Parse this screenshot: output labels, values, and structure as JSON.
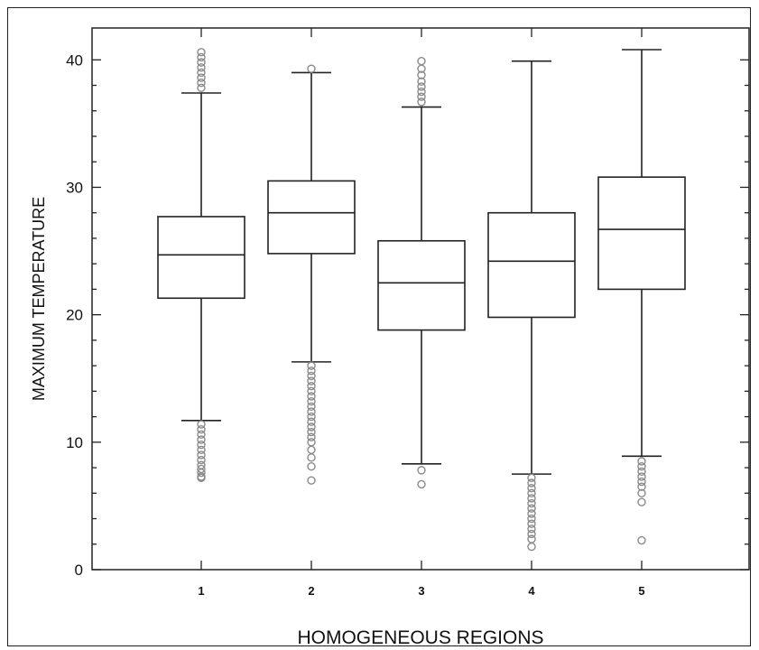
{
  "chart_data": {
    "type": "boxplot",
    "title": "",
    "xlabel": "HOMOGENEOUS REGIONS",
    "ylabel": "MAXIMUM TEMPERATURE",
    "ylim": [
      0,
      42.5
    ],
    "yticks": [
      0,
      10,
      20,
      30,
      40
    ],
    "categories": [
      "1",
      "2",
      "3",
      "4",
      "5"
    ],
    "grid": false,
    "legend": "none",
    "colors": {
      "box_stroke": "#222222",
      "outlier": "#8a8a8a"
    },
    "boxes": [
      {
        "category": "1",
        "whisker_low": 11.7,
        "q1": 21.3,
        "median": 24.7,
        "q3": 27.7,
        "whisker_high": 37.4,
        "outliers_low": [
          11.4,
          11.0,
          10.6,
          10.2,
          9.8,
          9.4,
          9.0,
          8.6,
          8.2,
          7.9,
          7.6,
          7.3,
          7.2
        ],
        "outliers_high": [
          37.8,
          38.2,
          38.6,
          39.0,
          39.4,
          39.8,
          40.2,
          40.6
        ]
      },
      {
        "category": "2",
        "whisker_low": 16.3,
        "q1": 24.8,
        "median": 28.0,
        "q3": 30.5,
        "whisker_high": 39.0,
        "outliers_low": [
          16.0,
          15.6,
          15.2,
          14.8,
          14.4,
          14.0,
          13.6,
          13.2,
          12.8,
          12.4,
          12.0,
          11.6,
          11.2,
          10.8,
          10.4,
          10.0,
          9.4,
          8.8,
          8.1,
          7.0
        ],
        "outliers_high": [
          39.3
        ]
      },
      {
        "category": "3",
        "whisker_low": 8.3,
        "q1": 18.8,
        "median": 22.5,
        "q3": 25.8,
        "whisker_high": 36.3,
        "outliers_low": [
          7.8,
          6.7
        ],
        "outliers_high": [
          36.7,
          37.1,
          37.5,
          37.9,
          38.3,
          38.8,
          39.3,
          39.9
        ]
      },
      {
        "category": "4",
        "whisker_low": 7.5,
        "q1": 19.8,
        "median": 24.2,
        "q3": 28.0,
        "whisker_high": 39.9,
        "outliers_low": [
          7.2,
          6.8,
          6.4,
          6.0,
          5.6,
          5.2,
          4.8,
          4.4,
          4.0,
          3.6,
          3.2,
          2.8,
          2.4,
          1.8
        ],
        "outliers_high": []
      },
      {
        "category": "5",
        "whisker_low": 8.9,
        "q1": 22.0,
        "median": 26.7,
        "q3": 30.8,
        "whisker_high": 40.8,
        "outliers_low": [
          8.5,
          8.1,
          7.7,
          7.3,
          6.9,
          6.5,
          6.0,
          5.3,
          2.3
        ],
        "outliers_high": []
      }
    ]
  }
}
